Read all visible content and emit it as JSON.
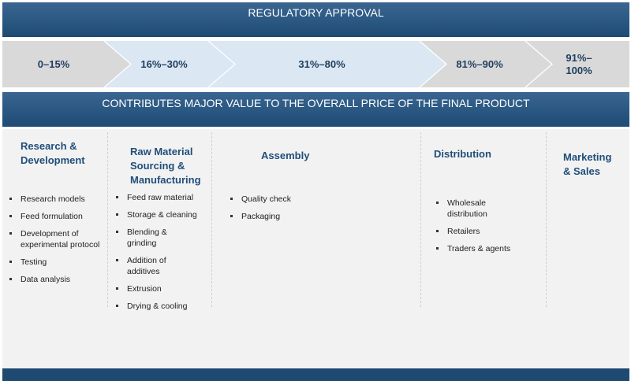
{
  "top_banner": "REGULATORY APPROVAL",
  "chevrons": [
    {
      "label": "0–15%"
    },
    {
      "label": "16%–30%"
    },
    {
      "label": "31%–80%"
    },
    {
      "label": "81%–90%"
    },
    {
      "label": "91%–100%"
    }
  ],
  "chevron_colors": [
    "#d9d9d9",
    "#dbe7f3",
    "#dbe7f3",
    "#d9d9d9",
    "#d9d9d9"
  ],
  "middle_banner": "CONTRIBUTES MAJOR VALUE TO THE OVERALL PRICE OF THE FINAL PRODUCT",
  "columns": [
    {
      "title": "Research & Development",
      "items": [
        "Research models",
        "Feed formulation",
        "Development of experimental protocol",
        "Testing",
        "Data analysis"
      ]
    },
    {
      "title": "Raw Material Sourcing & Manufacturing",
      "items": [
        "Feed raw material",
        "Storage & cleaning",
        "Blending & grinding",
        "Addition of additives",
        "Extrusion",
        "Drying & cooling"
      ]
    },
    {
      "title": "Assembly",
      "items": [
        "Quality check",
        "Packaging"
      ]
    },
    {
      "title": "Distribution",
      "items": [
        "Wholesale distribution",
        "Retailers",
        "Traders & agents"
      ]
    },
    {
      "title": "Marketing & Sales",
      "items": []
    }
  ]
}
